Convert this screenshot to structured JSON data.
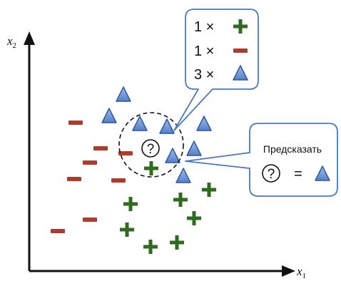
{
  "axes": {
    "x_label": "x",
    "x_sub": "1",
    "y_label": "x",
    "y_sub": "2"
  },
  "colors": {
    "plus": "#2e6b1e",
    "minus": "#b03a2b",
    "triangle_fill": "#6d96d4",
    "triangle_stroke": "#2f56a0",
    "callout_stroke": "#4a78c0",
    "axis": "#111111"
  },
  "icons": {
    "plus": "plus-icon",
    "minus": "minus-icon",
    "triangle": "triangle-icon",
    "query": "question-circle-icon"
  },
  "query": {
    "symbol": "?"
  },
  "neighbors_callout": {
    "rows": [
      {
        "count": "1 ×",
        "marker": "plus"
      },
      {
        "count": "1 ×",
        "marker": "minus"
      },
      {
        "count": "3 ×",
        "marker": "triangle"
      }
    ]
  },
  "prediction_callout": {
    "title": "Предсказать",
    "symbol": "?",
    "equals": "="
  }
}
